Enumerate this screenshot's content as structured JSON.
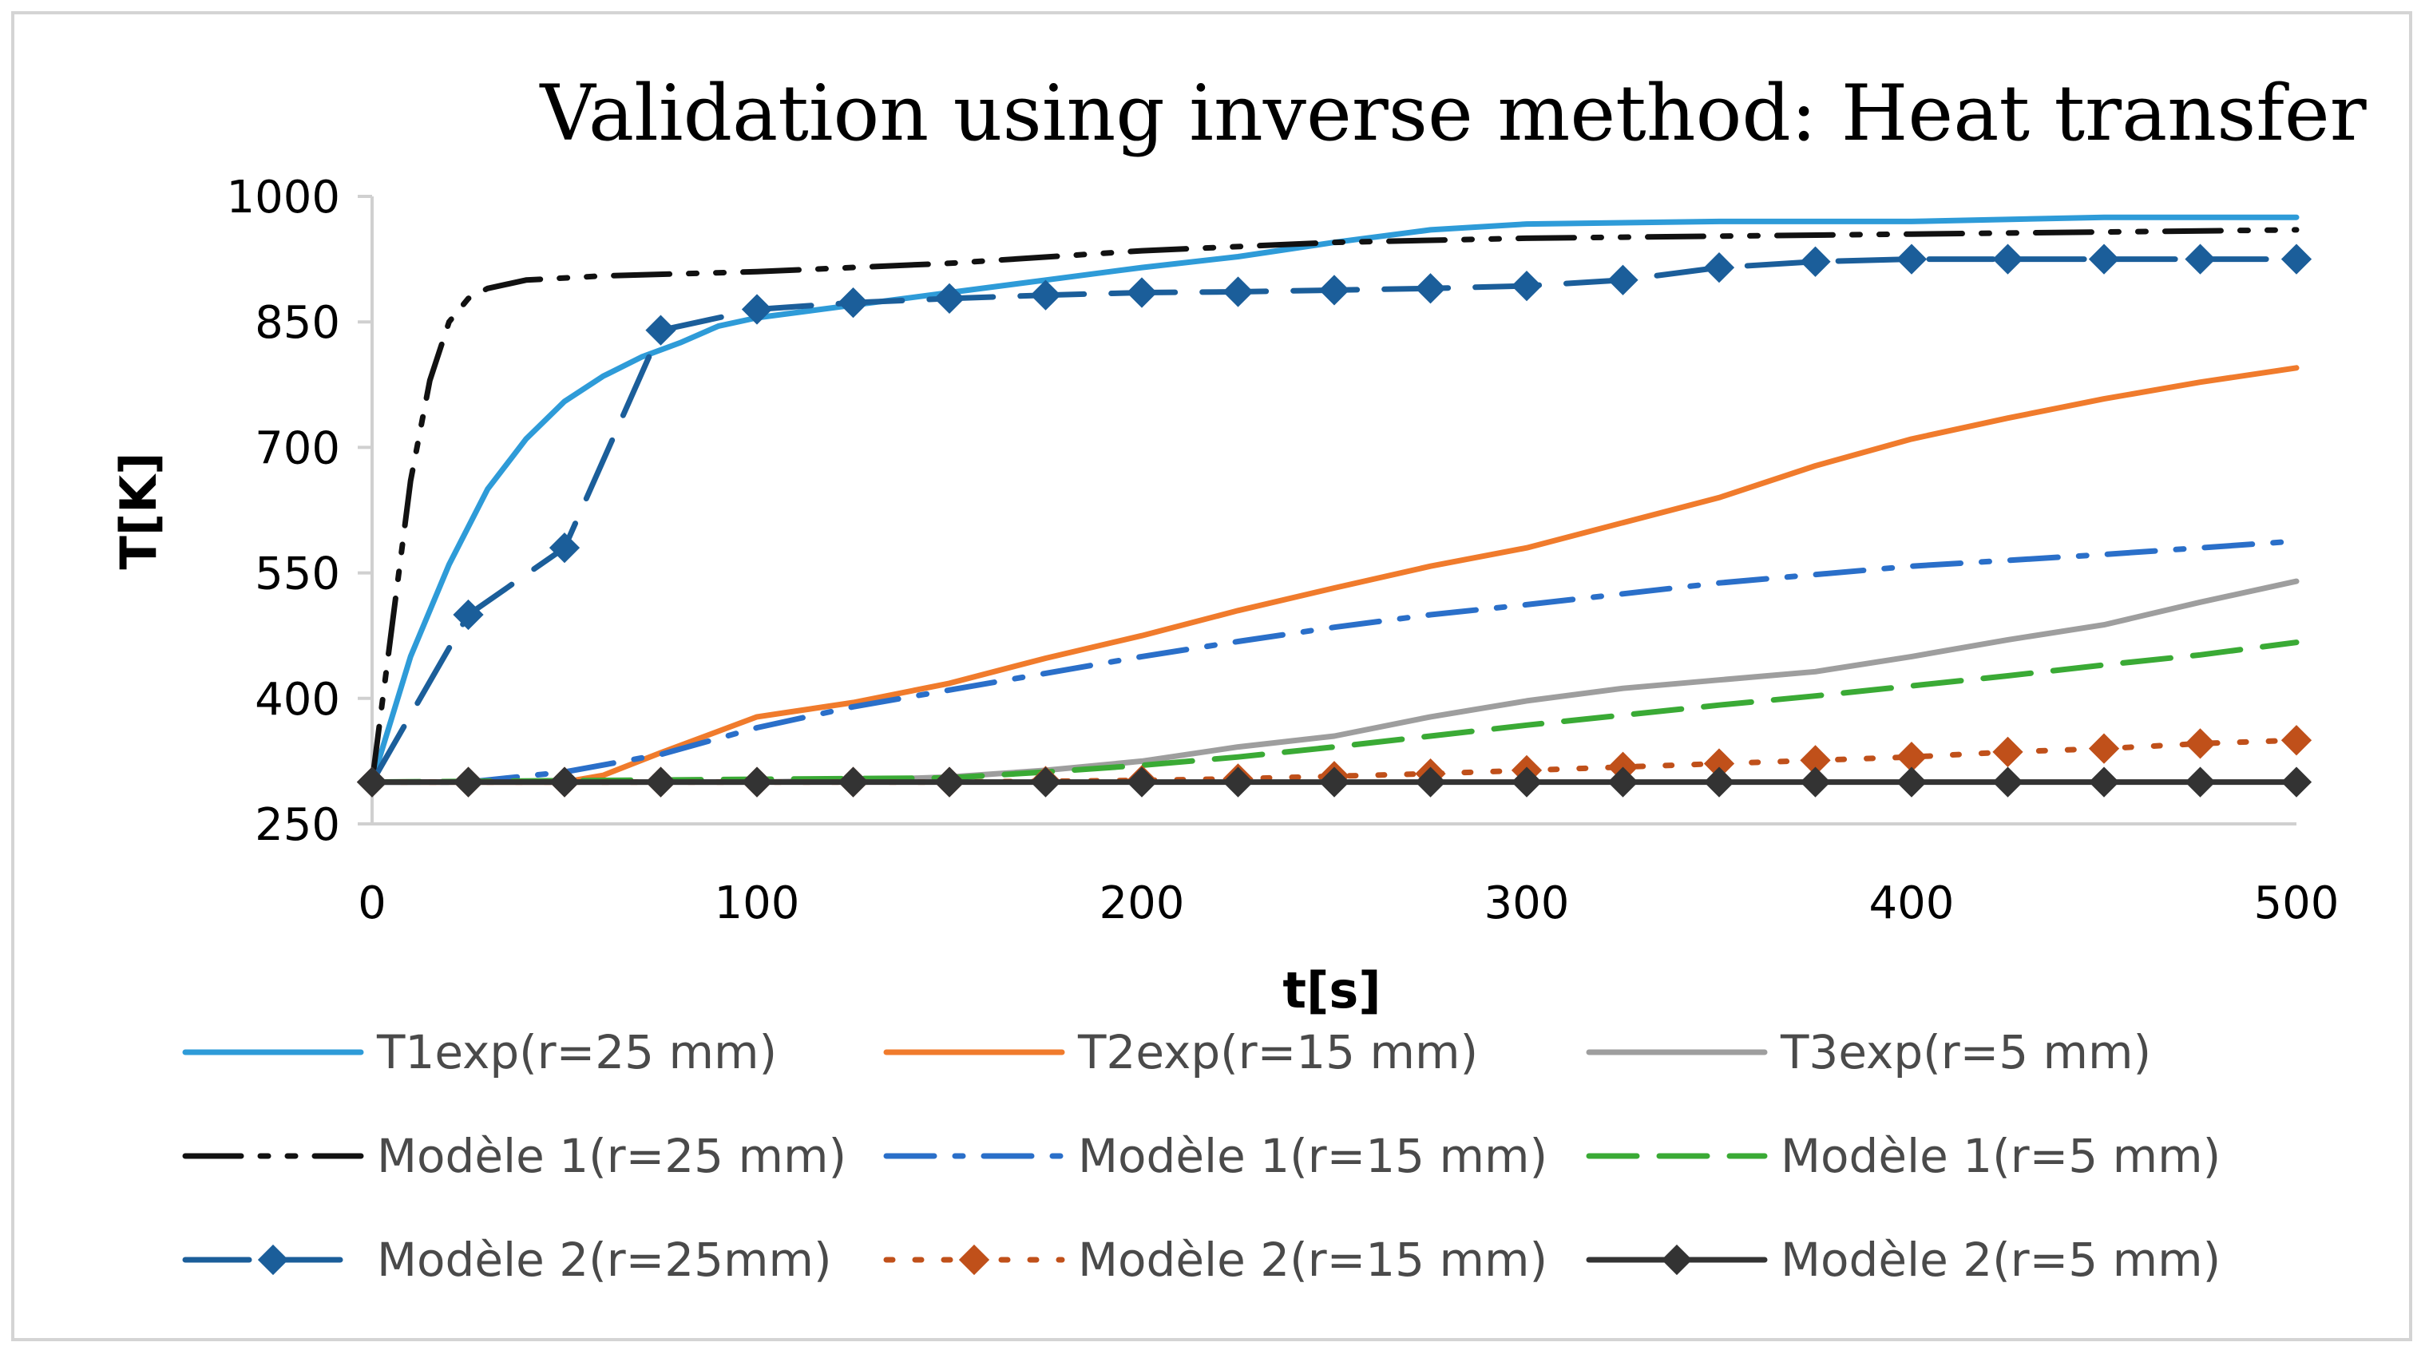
{
  "chart_data": {
    "type": "line",
    "title": "Validation using inverse method: Heat transfer",
    "xlabel": "t[s]",
    "ylabel": "T[K]",
    "xlim": [
      0,
      500
    ],
    "ylim": [
      250,
      1000
    ],
    "xticks": [
      0,
      100,
      200,
      300,
      400,
      500
    ],
    "yticks": [
      250,
      400,
      550,
      700,
      850,
      1000
    ],
    "grid": false,
    "legend_position": "bottom",
    "series": [
      {
        "name": "T1exp(r=25 mm)",
        "color": "#2e9bd8",
        "dash": "solid",
        "marker": "none",
        "x": [
          0,
          10,
          20,
          30,
          40,
          50,
          60,
          70,
          80,
          90,
          100,
          125,
          150,
          175,
          200,
          225,
          250,
          275,
          300,
          350,
          400,
          450,
          500
        ],
        "y": [
          300,
          450,
          560,
          650,
          710,
          755,
          785,
          808,
          825,
          845,
          855,
          870,
          885,
          900,
          915,
          928,
          945,
          960,
          967,
          970,
          970,
          975,
          975
        ]
      },
      {
        "name": "T2exp(r=15 mm)",
        "color": "#f07b2c",
        "dash": "solid",
        "marker": "none",
        "x": [
          0,
          50,
          60,
          75,
          100,
          125,
          150,
          175,
          200,
          225,
          250,
          275,
          300,
          325,
          350,
          375,
          400,
          425,
          450,
          475,
          500
        ],
        "y": [
          300,
          300,
          308,
          335,
          378,
          395,
          418,
          448,
          475,
          505,
          532,
          558,
          580,
          610,
          640,
          678,
          710,
          735,
          758,
          778,
          795
        ]
      },
      {
        "name": "T3exp(r=5 mm)",
        "color": "#9e9e9e",
        "dash": "solid",
        "marker": "none",
        "x": [
          0,
          100,
          125,
          150,
          175,
          200,
          225,
          250,
          275,
          300,
          325,
          350,
          375,
          400,
          425,
          450,
          475,
          500
        ],
        "y": [
          300,
          300,
          302,
          306,
          314,
          325,
          342,
          355,
          378,
          397,
          412,
          422,
          432,
          450,
          470,
          488,
          515,
          540
        ]
      },
      {
        "name": "Modèle 1(r=25 mm)",
        "color": "#111111",
        "dash": "dashdotdot",
        "marker": "none",
        "x": [
          0,
          5,
          10,
          15,
          20,
          25,
          30,
          40,
          60,
          100,
          150,
          200,
          250,
          300,
          400,
          500
        ],
        "y": [
          300,
          480,
          660,
          780,
          850,
          878,
          890,
          900,
          905,
          910,
          920,
          935,
          945,
          950,
          955,
          960
        ]
      },
      {
        "name": "Modèle 1(r=15 mm)",
        "color": "#2a6fc9",
        "dash": "dashdot",
        "marker": "none",
        "x": [
          0,
          25,
          50,
          75,
          100,
          125,
          150,
          175,
          200,
          225,
          250,
          275,
          300,
          325,
          350,
          375,
          400,
          425,
          450,
          475,
          500
        ],
        "y": [
          300,
          300,
          312,
          333,
          365,
          390,
          410,
          430,
          450,
          468,
          485,
          500,
          512,
          525,
          538,
          548,
          558,
          565,
          572,
          580,
          588
        ]
      },
      {
        "name": "Modèle 1(r=5 mm)",
        "color": "#3aaa35",
        "dash": "dashed",
        "marker": "none",
        "x": [
          0,
          150,
          175,
          200,
          225,
          250,
          275,
          300,
          325,
          350,
          375,
          400,
          425,
          450,
          475,
          500
        ],
        "y": [
          300,
          305,
          312,
          320,
          330,
          342,
          355,
          368,
          380,
          392,
          403,
          415,
          427,
          440,
          452,
          467
        ]
      },
      {
        "name": "Modèle 2(r=25mm)",
        "color": "#1b5e9a",
        "dash": "longdash",
        "marker": "diamond",
        "x": [
          0,
          25,
          50,
          75,
          100,
          125,
          150,
          175,
          200,
          225,
          250,
          275,
          300,
          325,
          350,
          375,
          400,
          425,
          450,
          475,
          500
        ],
        "y": [
          300,
          500,
          580,
          840,
          865,
          873,
          878,
          882,
          885,
          886,
          888,
          890,
          893,
          900,
          915,
          922,
          925,
          925,
          925,
          925,
          925
        ]
      },
      {
        "name": "Modèle 2(r=15 mm)",
        "color": "#c0501a",
        "dash": "dotted",
        "marker": "diamond",
        "x": [
          0,
          25,
          50,
          75,
          100,
          125,
          150,
          175,
          200,
          225,
          250,
          275,
          300,
          325,
          350,
          375,
          400,
          425,
          450,
          475,
          500
        ],
        "y": [
          300,
          300,
          300,
          300,
          300,
          300,
          300,
          301,
          302,
          304,
          307,
          310,
          314,
          318,
          322,
          326,
          330,
          336,
          340,
          346,
          350
        ]
      },
      {
        "name": "Modèle 2(r=5 mm)",
        "color": "#333333",
        "dash": "solid",
        "marker": "diamond",
        "x": [
          0,
          25,
          50,
          75,
          100,
          125,
          150,
          175,
          200,
          225,
          250,
          275,
          300,
          325,
          350,
          375,
          400,
          425,
          450,
          475,
          500
        ],
        "y": [
          300,
          300,
          300,
          300,
          300,
          300,
          300,
          300,
          300,
          300,
          300,
          300,
          300,
          300,
          300,
          300,
          300,
          300,
          300,
          300,
          300
        ]
      }
    ]
  }
}
